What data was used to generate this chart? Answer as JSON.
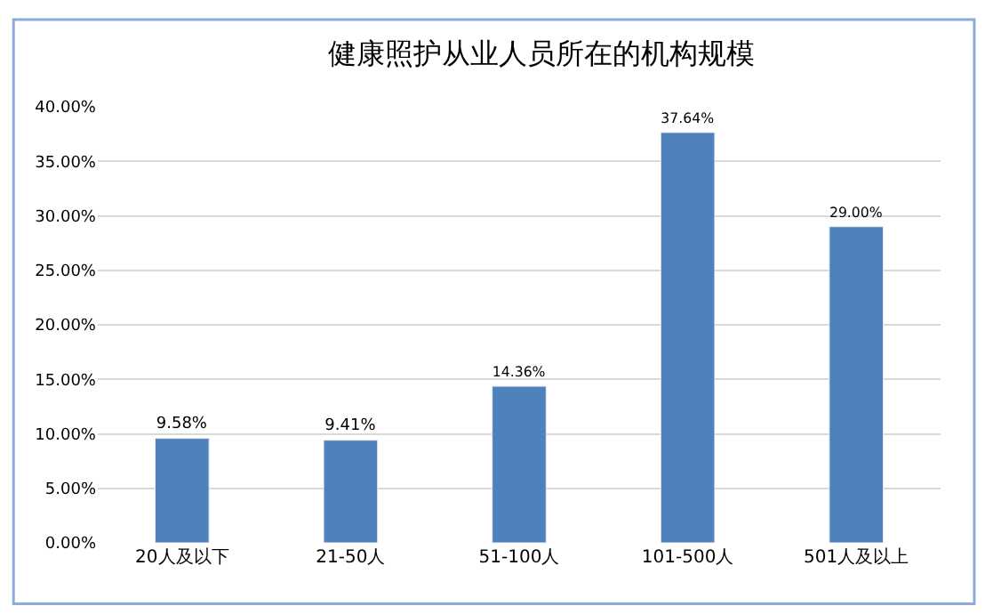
{
  "chart_data": {
    "type": "bar",
    "title": "健康照护从业人员所在的机构规模",
    "categories": [
      "20人及以下",
      "21-50人",
      "51-100人",
      "101-500人",
      "501人及以上"
    ],
    "values": [
      9.58,
      9.41,
      14.36,
      37.64,
      29.0
    ],
    "value_labels": [
      "9.58%",
      "9.41%",
      "14.36%",
      "37.64%",
      "29.00%"
    ],
    "color": "#4f81bd",
    "ylim": [
      0,
      40
    ],
    "yticks": [
      {
        "value": 0,
        "label": "0.00%"
      },
      {
        "value": 5,
        "label": "5.00%"
      },
      {
        "value": 10,
        "label": "10.00%"
      },
      {
        "value": 15,
        "label": "15.00%"
      },
      {
        "value": 20,
        "label": "20.00%"
      },
      {
        "value": 25,
        "label": "25.00%"
      },
      {
        "value": 30,
        "label": "30.00%"
      },
      {
        "value": 35,
        "label": "35.00%"
      },
      {
        "value": 40,
        "label": "40.00%"
      }
    ],
    "grid": "y",
    "legend": false
  }
}
